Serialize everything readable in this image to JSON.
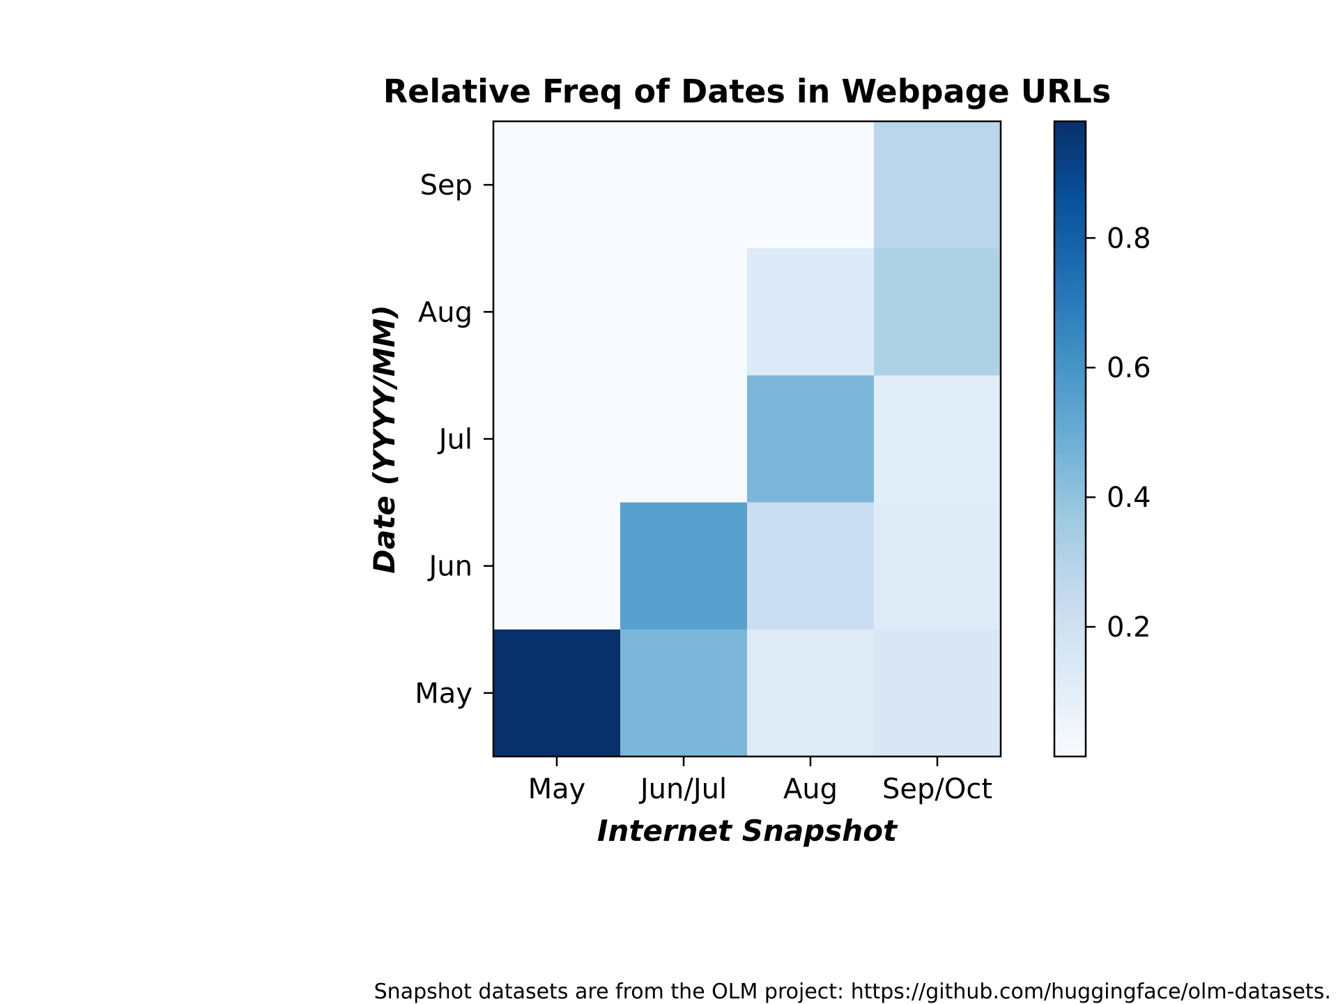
{
  "chart_data": {
    "type": "heatmap",
    "title": "Relative Freq of Dates in Webpage URLs",
    "xlabel": "Internet Snapshot",
    "ylabel": "Date (YYYY/MM)",
    "x_categories": [
      "May",
      "Jun/Jul",
      "Aug",
      "Sep/Oct"
    ],
    "y_categories": [
      "Sep",
      "Aug",
      "Jul",
      "Jun",
      "May"
    ],
    "values": [
      [
        0.0,
        0.0,
        0.0,
        0.28
      ],
      [
        0.0,
        0.0,
        0.13,
        0.32
      ],
      [
        0.0,
        0.0,
        0.45,
        0.11
      ],
      [
        0.0,
        0.55,
        0.22,
        0.12
      ],
      [
        0.98,
        0.45,
        0.12,
        0.15
      ]
    ],
    "colormap": "Blues",
    "colorbar": {
      "range": [
        0.0,
        0.98
      ],
      "ticks": [
        0.2,
        0.4,
        0.6,
        0.8
      ],
      "tick_labels": [
        "0.2",
        "0.4",
        "0.6",
        "0.8"
      ]
    }
  },
  "footnote": "Snapshot datasets are from the OLM project: https://github.com/huggingface/olm-datasets."
}
